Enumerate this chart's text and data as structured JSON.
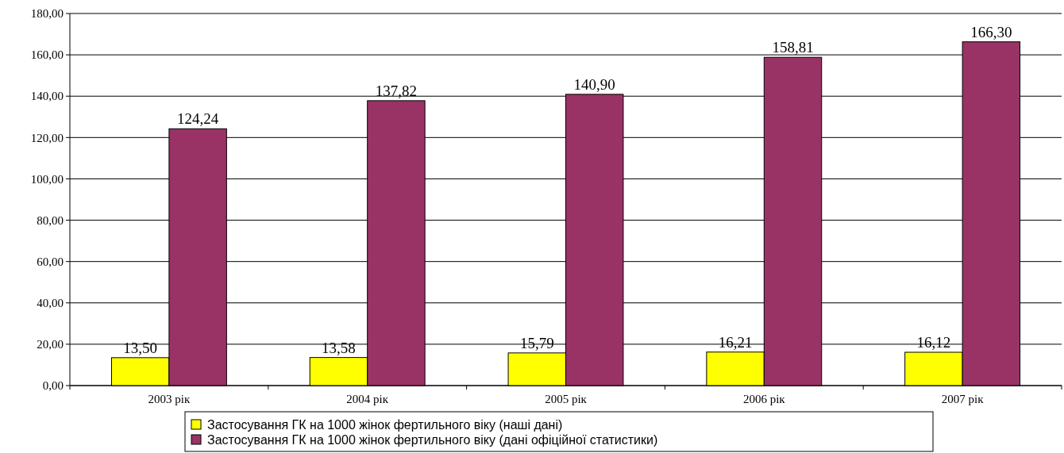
{
  "chart_data": {
    "type": "bar",
    "categories": [
      "2003 рік",
      "2004 рік",
      "2005 рік",
      "2006 рік",
      "2007 рік"
    ],
    "series": [
      {
        "name": "Застосування ГК на 1000 жінок фертильного віку (наші дані)",
        "color": "#ffff00",
        "values": [
          13.5,
          13.58,
          15.79,
          16.21,
          16.12
        ],
        "value_labels": [
          "13,50",
          "13,58",
          "15,79",
          "16,21",
          "16,12"
        ]
      },
      {
        "name": "Застосування ГК на 1000 жінок фертильного віку (дані офіційної статистики)",
        "color": "#993366",
        "values": [
          124.24,
          137.82,
          140.9,
          158.81,
          166.3
        ],
        "value_labels": [
          "124,24",
          "137,82",
          "140,90",
          "158,81",
          "166,30"
        ]
      }
    ],
    "ylim": [
      0,
      180
    ],
    "yticks": [
      {
        "value": 0,
        "label": "0,00"
      },
      {
        "value": 20,
        "label": "20,00"
      },
      {
        "value": 40,
        "label": "40,00"
      },
      {
        "value": 60,
        "label": "60,00"
      },
      {
        "value": 80,
        "label": "80,00"
      },
      {
        "value": 100,
        "label": "100,00"
      },
      {
        "value": 120,
        "label": "120,00"
      },
      {
        "value": 140,
        "label": "140,00"
      },
      {
        "value": 160,
        "label": "160,00"
      },
      {
        "value": 180,
        "label": "180,00"
      }
    ],
    "grid": "y",
    "legend": "bottom"
  }
}
